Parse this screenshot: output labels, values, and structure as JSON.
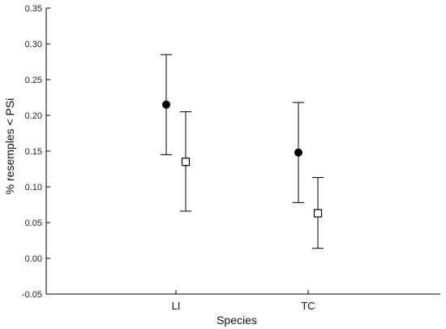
{
  "chart_data": {
    "type": "scatter",
    "xlabel": "Species",
    "ylabel": "% resemples < PSi",
    "categories": [
      "LI",
      "TC"
    ],
    "ylim": [
      -0.05,
      0.35
    ],
    "yticks": [
      "-0.05",
      "0.00",
      "0.05",
      "0.10",
      "0.15",
      "0.20",
      "0.25",
      "0.30",
      "0.35"
    ],
    "grid": false,
    "legend": "none",
    "series": [
      {
        "marker": "filled-circle",
        "color": "#000000",
        "points": [
          {
            "category": "LI",
            "y": 0.215,
            "low": 0.145,
            "high": 0.285
          },
          {
            "category": "TC",
            "y": 0.148,
            "low": 0.078,
            "high": 0.218
          }
        ]
      },
      {
        "marker": "open-square",
        "color": "#000000",
        "points": [
          {
            "category": "LI",
            "y": 0.135,
            "low": 0.066,
            "high": 0.205
          },
          {
            "category": "TC",
            "y": 0.063,
            "low": 0.014,
            "high": 0.113
          }
        ]
      }
    ]
  }
}
